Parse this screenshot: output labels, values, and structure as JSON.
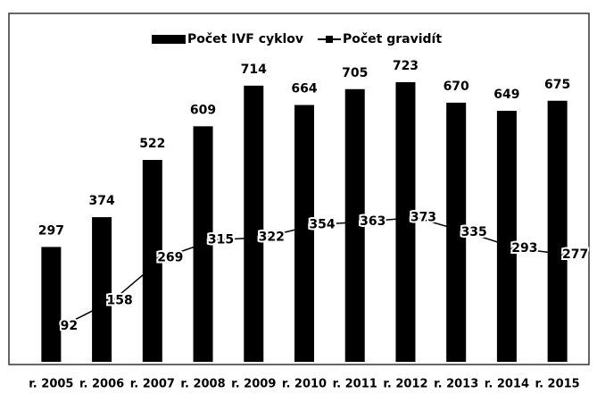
{
  "chart_data": {
    "type": "bar",
    "categories": [
      "r. 2005",
      "r. 2006",
      "r. 2007",
      "r. 2008",
      "r. 2009",
      "r. 2010",
      "r. 2011",
      "r. 2012",
      "r. 2013",
      "r. 2014",
      "r. 2015"
    ],
    "series": [
      {
        "name": "Počet IVF cyklov",
        "type": "bar",
        "color": "#000000",
        "values": [
          297,
          374,
          522,
          609,
          714,
          664,
          705,
          723,
          670,
          649,
          675
        ]
      },
      {
        "name": "Počet gravidít",
        "type": "line",
        "color": "#000000",
        "values": [
          92,
          158,
          269,
          315,
          322,
          354,
          363,
          373,
          335,
          293,
          277
        ]
      }
    ],
    "ylim": [
      0,
      850
    ],
    "legend": "top"
  }
}
